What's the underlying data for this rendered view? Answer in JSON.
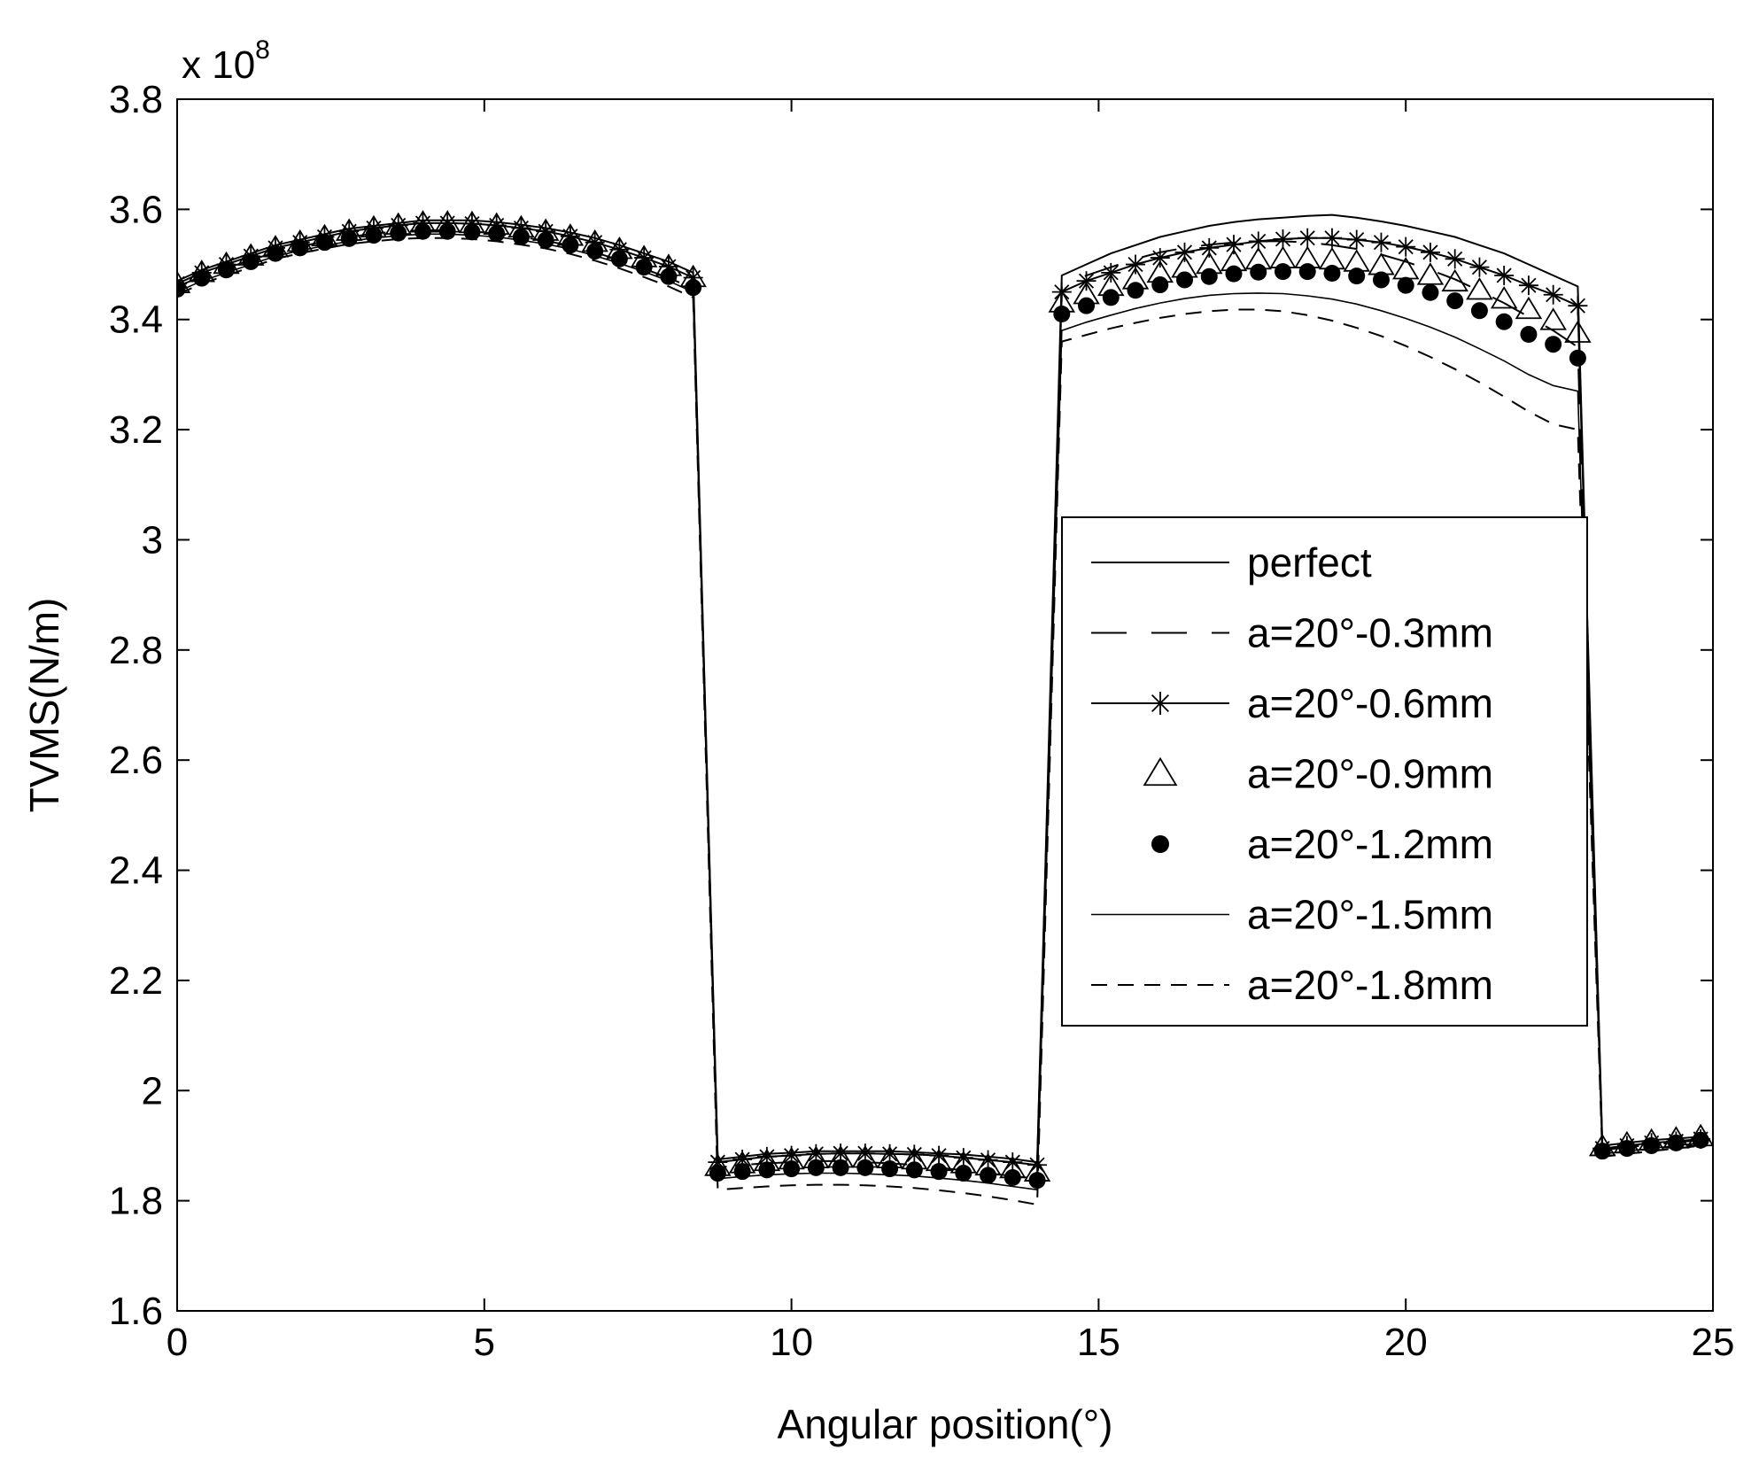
{
  "chart_data": {
    "type": "line",
    "xlabel": "Angular position(°)",
    "ylabel": "TVMS(N/m)",
    "y_multiplier": "x 10",
    "y_multiplier_exp": "8",
    "xlim": [
      0,
      25
    ],
    "ylim": [
      1.6,
      3.8
    ],
    "xticks": [
      0,
      5,
      10,
      15,
      20,
      25
    ],
    "xtick_labels": [
      "0",
      "5",
      "10",
      "15",
      "20",
      "25"
    ],
    "yticks": [
      1.6,
      1.8,
      2.0,
      2.2,
      2.4,
      2.6,
      2.8,
      3.0,
      3.2,
      3.4,
      3.6,
      3.8
    ],
    "ytick_labels": [
      "1.6",
      "1.8",
      "2",
      "2.2",
      "2.4",
      "2.6",
      "2.8",
      "3",
      "3.2",
      "3.4",
      "3.6",
      "3.8"
    ],
    "grid": false,
    "legend_position": "right",
    "series": [
      {
        "name": "perfect",
        "style": "solid",
        "marker": "none",
        "x": [
          0,
          0.4,
          0.8,
          1.2,
          1.6,
          2.0,
          2.4,
          2.8,
          3.2,
          3.6,
          4.0,
          4.4,
          4.8,
          5.2,
          5.6,
          6.0,
          6.4,
          6.8,
          7.2,
          7.6,
          8.0,
          8.4,
          8.8,
          9.2,
          9.6,
          10.0,
          10.4,
          10.8,
          11.2,
          11.6,
          12.0,
          12.4,
          12.8,
          13.2,
          13.6,
          14.0,
          14.4,
          14.8,
          15.2,
          15.6,
          16.0,
          16.4,
          16.8,
          17.2,
          17.6,
          18.0,
          18.4,
          18.8,
          19.2,
          19.6,
          20.0,
          20.4,
          20.8,
          21.2,
          21.6,
          22.0,
          22.4,
          22.8,
          23.2,
          23.6,
          24.0,
          24.4,
          24.8
        ],
        "y": [
          3.47,
          3.49,
          3.505,
          3.52,
          3.535,
          3.545,
          3.555,
          3.565,
          3.57,
          3.575,
          3.58,
          3.58,
          3.58,
          3.577,
          3.572,
          3.566,
          3.558,
          3.548,
          3.535,
          3.52,
          3.505,
          3.485,
          1.875,
          1.88,
          1.885,
          1.887,
          1.89,
          1.89,
          1.89,
          1.89,
          1.888,
          1.886,
          1.884,
          1.88,
          1.876,
          1.87,
          3.48,
          3.5,
          3.52,
          3.535,
          3.55,
          3.56,
          3.57,
          3.577,
          3.582,
          3.585,
          3.588,
          3.59,
          3.585,
          3.578,
          3.57,
          3.56,
          3.55,
          3.535,
          3.52,
          3.5,
          3.48,
          3.46,
          1.9,
          1.905,
          1.91,
          1.913,
          1.916
        ]
      },
      {
        "name": "a=20°-0.3mm",
        "style": "longdash",
        "marker": "none",
        "x": [
          0,
          0.4,
          0.8,
          1.2,
          1.6,
          2.0,
          2.4,
          2.8,
          3.2,
          3.6,
          4.0,
          4.4,
          4.8,
          5.2,
          5.6,
          6.0,
          6.4,
          6.8,
          7.2,
          7.6,
          8.0,
          8.4,
          8.8,
          9.2,
          9.6,
          10.0,
          10.4,
          10.8,
          11.2,
          11.6,
          12.0,
          12.4,
          12.8,
          13.2,
          13.6,
          14.0,
          14.4,
          14.8,
          15.2,
          15.6,
          16.0,
          16.4,
          16.8,
          17.2,
          17.6,
          18.0,
          18.4,
          18.8,
          19.2,
          19.6,
          20.0,
          20.4,
          20.8,
          21.2,
          21.6,
          22.0,
          22.4,
          22.8,
          23.2,
          23.6,
          24.0,
          24.4,
          24.8
        ],
        "y": [
          3.46,
          3.478,
          3.493,
          3.508,
          3.522,
          3.532,
          3.542,
          3.55,
          3.556,
          3.56,
          3.562,
          3.562,
          3.56,
          3.556,
          3.55,
          3.543,
          3.534,
          3.522,
          3.508,
          3.492,
          3.476,
          3.456,
          1.86,
          1.865,
          1.868,
          1.87,
          1.872,
          1.872,
          1.87,
          1.868,
          1.865,
          1.86,
          1.855,
          1.85,
          1.845,
          1.84,
          3.46,
          3.48,
          3.495,
          3.51,
          3.522,
          3.53,
          3.536,
          3.54,
          3.542,
          3.542,
          3.54,
          3.535,
          3.528,
          3.518,
          3.505,
          3.49,
          3.473,
          3.452,
          3.43,
          3.405,
          3.38,
          3.35,
          1.892,
          1.897,
          1.902,
          1.906,
          1.91
        ]
      },
      {
        "name": "a=20°-0.6mm",
        "style": "solid",
        "marker": "star",
        "x": [
          0,
          0.4,
          0.8,
          1.2,
          1.6,
          2.0,
          2.4,
          2.8,
          3.2,
          3.6,
          4.0,
          4.4,
          4.8,
          5.2,
          5.6,
          6.0,
          6.4,
          6.8,
          7.2,
          7.6,
          8.0,
          8.4,
          8.8,
          9.2,
          9.6,
          10.0,
          10.4,
          10.8,
          11.2,
          11.6,
          12.0,
          12.4,
          12.8,
          13.2,
          13.6,
          14.0,
          14.4,
          14.8,
          15.2,
          15.6,
          16.0,
          16.4,
          16.8,
          17.2,
          17.6,
          18.0,
          18.4,
          18.8,
          19.2,
          19.6,
          20.0,
          20.4,
          20.8,
          21.2,
          21.6,
          22.0,
          22.4,
          22.8,
          23.2,
          23.6,
          24.0,
          24.4,
          24.8
        ],
        "y": [
          3.465,
          3.485,
          3.5,
          3.515,
          3.53,
          3.54,
          3.55,
          3.56,
          3.566,
          3.571,
          3.575,
          3.575,
          3.574,
          3.571,
          3.566,
          3.56,
          3.551,
          3.54,
          3.527,
          3.512,
          3.496,
          3.476,
          1.87,
          1.875,
          1.88,
          1.882,
          1.885,
          1.886,
          1.886,
          1.885,
          1.884,
          1.882,
          1.878,
          1.874,
          1.87,
          1.865,
          3.45,
          3.47,
          3.485,
          3.5,
          3.512,
          3.522,
          3.53,
          3.536,
          3.542,
          3.546,
          3.548,
          3.548,
          3.545,
          3.54,
          3.532,
          3.522,
          3.51,
          3.495,
          3.48,
          3.462,
          3.445,
          3.425,
          1.895,
          1.9,
          1.905,
          1.908,
          1.912
        ]
      },
      {
        "name": "a=20°-0.9mm",
        "style": "none",
        "marker": "triangle",
        "x": [
          0,
          0.4,
          0.8,
          1.2,
          1.6,
          2.0,
          2.4,
          2.8,
          3.2,
          3.6,
          4.0,
          4.4,
          4.8,
          5.2,
          5.6,
          6.0,
          6.4,
          6.8,
          7.2,
          7.6,
          8.0,
          8.4,
          8.8,
          9.2,
          9.6,
          10.0,
          10.4,
          10.8,
          11.2,
          11.6,
          12.0,
          12.4,
          12.8,
          13.2,
          13.6,
          14.0,
          14.4,
          14.8,
          15.2,
          15.6,
          16.0,
          16.4,
          16.8,
          17.2,
          17.6,
          18.0,
          18.4,
          18.8,
          19.2,
          19.6,
          20.0,
          20.4,
          20.8,
          21.2,
          21.6,
          22.0,
          22.4,
          22.8,
          23.2,
          23.6,
          24.0,
          24.4,
          24.8
        ],
        "y": [
          3.465,
          3.485,
          3.5,
          3.515,
          3.53,
          3.54,
          3.55,
          3.56,
          3.566,
          3.571,
          3.575,
          3.575,
          3.574,
          3.571,
          3.566,
          3.56,
          3.551,
          3.54,
          3.527,
          3.512,
          3.496,
          3.476,
          1.862,
          1.867,
          1.871,
          1.874,
          1.876,
          1.877,
          1.877,
          1.876,
          1.874,
          1.871,
          1.867,
          1.863,
          1.858,
          1.852,
          3.43,
          3.445,
          3.46,
          3.472,
          3.484,
          3.493,
          3.5,
          3.505,
          3.508,
          3.51,
          3.51,
          3.508,
          3.504,
          3.498,
          3.49,
          3.48,
          3.468,
          3.453,
          3.437,
          3.418,
          3.398,
          3.375,
          1.898,
          1.903,
          1.908,
          1.912,
          1.916
        ]
      },
      {
        "name": "a=20°-1.2mm",
        "style": "none",
        "marker": "dot",
        "x": [
          0,
          0.4,
          0.8,
          1.2,
          1.6,
          2.0,
          2.4,
          2.8,
          3.2,
          3.6,
          4.0,
          4.4,
          4.8,
          5.2,
          5.6,
          6.0,
          6.4,
          6.8,
          7.2,
          7.6,
          8.0,
          8.4,
          8.8,
          9.2,
          9.6,
          10.0,
          10.4,
          10.8,
          11.2,
          11.6,
          12.0,
          12.4,
          12.8,
          13.2,
          13.6,
          14.0,
          14.4,
          14.8,
          15.2,
          15.6,
          16.0,
          16.4,
          16.8,
          17.2,
          17.6,
          18.0,
          18.4,
          18.8,
          19.2,
          19.6,
          20.0,
          20.4,
          20.8,
          21.2,
          21.6,
          22.0,
          22.4,
          22.8,
          23.2,
          23.6,
          24.0,
          24.4,
          24.8
        ],
        "y": [
          3.455,
          3.475,
          3.49,
          3.505,
          3.52,
          3.53,
          3.54,
          3.547,
          3.553,
          3.557,
          3.56,
          3.56,
          3.559,
          3.556,
          3.55,
          3.544,
          3.535,
          3.524,
          3.51,
          3.495,
          3.478,
          3.458,
          1.85,
          1.853,
          1.856,
          1.858,
          1.86,
          1.86,
          1.86,
          1.858,
          1.856,
          1.853,
          1.85,
          1.846,
          1.842,
          1.837,
          3.41,
          3.425,
          3.44,
          3.453,
          3.463,
          3.472,
          3.478,
          3.483,
          3.486,
          3.487,
          3.487,
          3.484,
          3.479,
          3.472,
          3.462,
          3.449,
          3.434,
          3.416,
          3.396,
          3.373,
          3.355,
          3.33,
          1.89,
          1.895,
          1.9,
          1.905,
          1.91
        ]
      },
      {
        "name": "a=20°-1.5mm",
        "style": "solid-thin",
        "marker": "none",
        "x": [
          0,
          0.4,
          0.8,
          1.2,
          1.6,
          2.0,
          2.4,
          2.8,
          3.2,
          3.6,
          4.0,
          4.4,
          4.8,
          5.2,
          5.6,
          6.0,
          6.4,
          6.8,
          7.2,
          7.6,
          8.0,
          8.4,
          8.8,
          9.2,
          9.6,
          10.0,
          10.4,
          10.8,
          11.2,
          11.6,
          12.0,
          12.4,
          12.8,
          13.2,
          13.6,
          14.0,
          14.4,
          14.8,
          15.2,
          15.6,
          16.0,
          16.4,
          16.8,
          17.2,
          17.6,
          18.0,
          18.4,
          18.8,
          19.2,
          19.6,
          20.0,
          20.4,
          20.8,
          21.2,
          21.6,
          22.0,
          22.4,
          22.8,
          23.2,
          23.6,
          24.0,
          24.4,
          24.8
        ],
        "y": [
          3.45,
          3.47,
          3.485,
          3.5,
          3.515,
          3.525,
          3.534,
          3.542,
          3.548,
          3.552,
          3.555,
          3.555,
          3.553,
          3.55,
          3.544,
          3.537,
          3.528,
          3.516,
          3.502,
          3.487,
          3.47,
          3.45,
          1.84,
          1.844,
          1.847,
          1.849,
          1.85,
          1.85,
          1.849,
          1.847,
          1.845,
          1.841,
          1.837,
          1.832,
          1.826,
          1.82,
          3.38,
          3.395,
          3.408,
          3.42,
          3.43,
          3.438,
          3.444,
          3.447,
          3.448,
          3.447,
          3.443,
          3.437,
          3.428,
          3.416,
          3.402,
          3.386,
          3.368,
          3.347,
          3.325,
          3.3,
          3.28,
          3.27,
          1.885,
          1.89,
          1.895,
          1.9,
          1.905
        ]
      },
      {
        "name": "a=20°-1.8mm",
        "style": "dashed",
        "marker": "none",
        "x": [
          0,
          0.4,
          0.8,
          1.2,
          1.6,
          2.0,
          2.4,
          2.8,
          3.2,
          3.6,
          4.0,
          4.4,
          4.8,
          5.2,
          5.6,
          6.0,
          6.4,
          6.8,
          7.2,
          7.6,
          8.0,
          8.4,
          8.8,
          9.2,
          9.6,
          10.0,
          10.4,
          10.8,
          11.2,
          11.6,
          12.0,
          12.4,
          12.8,
          13.2,
          13.6,
          14.0,
          14.4,
          14.8,
          15.2,
          15.6,
          16.0,
          16.4,
          16.8,
          17.2,
          17.6,
          18.0,
          18.4,
          18.8,
          19.2,
          19.6,
          20.0,
          20.4,
          20.8,
          21.2,
          21.6,
          22.0,
          22.4,
          22.8,
          23.2,
          23.6,
          24.0,
          24.4,
          24.8
        ],
        "y": [
          3.445,
          3.465,
          3.48,
          3.495,
          3.51,
          3.52,
          3.529,
          3.537,
          3.542,
          3.546,
          3.548,
          3.548,
          3.546,
          3.542,
          3.536,
          3.529,
          3.519,
          3.507,
          3.493,
          3.477,
          3.46,
          3.44,
          1.82,
          1.823,
          1.826,
          1.828,
          1.829,
          1.829,
          1.828,
          1.826,
          1.823,
          1.819,
          1.814,
          1.808,
          1.801,
          1.793,
          3.36,
          3.372,
          3.384,
          3.394,
          3.403,
          3.41,
          3.415,
          3.418,
          3.418,
          3.415,
          3.408,
          3.398,
          3.385,
          3.37,
          3.352,
          3.332,
          3.31,
          3.286,
          3.26,
          3.233,
          3.21,
          3.2,
          1.88,
          1.885,
          1.89,
          1.895,
          1.9
        ]
      }
    ]
  }
}
